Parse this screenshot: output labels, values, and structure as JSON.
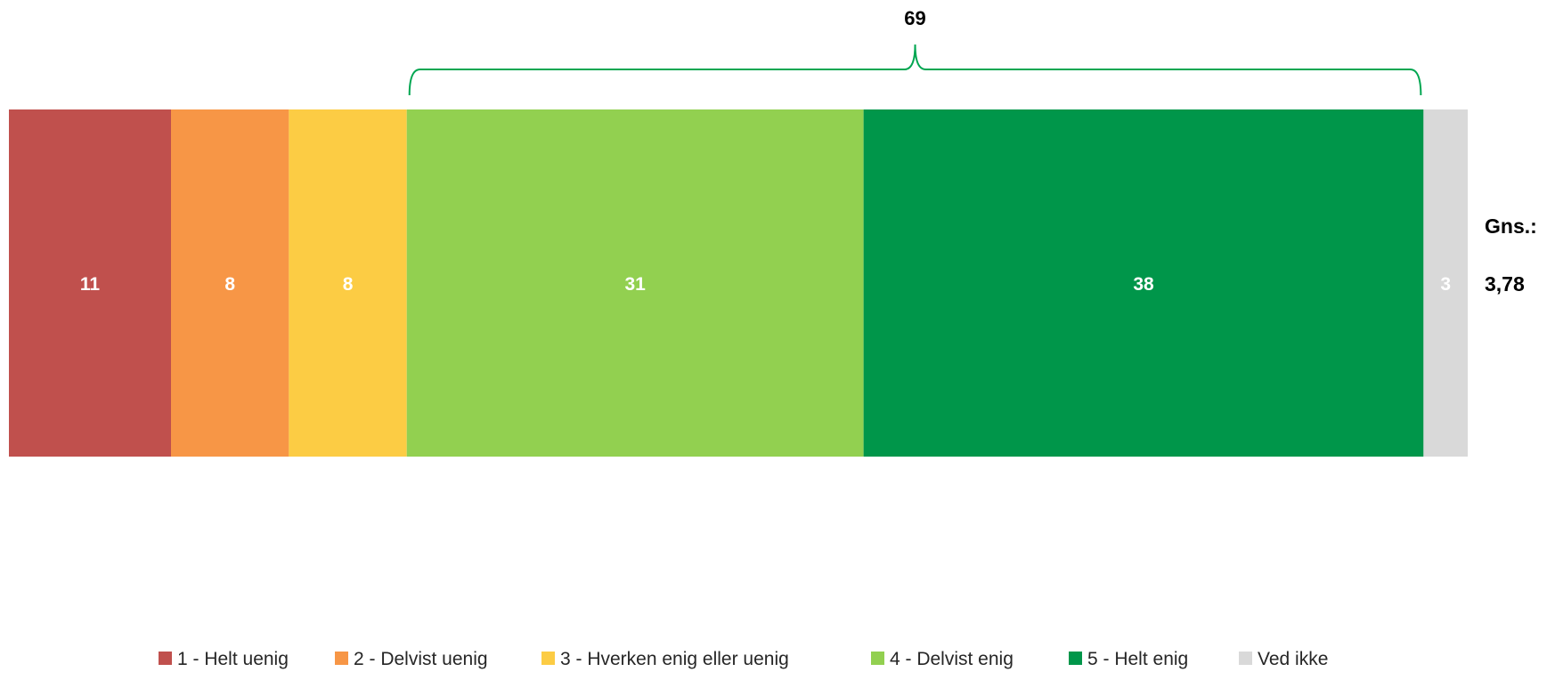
{
  "chart_data": {
    "type": "bar",
    "orientation": "horizontal",
    "stacked": true,
    "categories": [
      ""
    ],
    "series": [
      {
        "name": "1 - Helt uenig",
        "values": [
          11
        ],
        "color": "#C0504D"
      },
      {
        "name": "2 - Delvist uenig",
        "values": [
          8
        ],
        "color": "#F79646"
      },
      {
        "name": "3 - Hverken enig eller uenig",
        "values": [
          8
        ],
        "color": "#FCCC44"
      },
      {
        "name": "4 - Delvist enig",
        "values": [
          31
        ],
        "color": "#92D050"
      },
      {
        "name": "5 - Helt enig",
        "values": [
          38
        ],
        "color": "#00964A"
      },
      {
        "name": "Ved ikke",
        "values": [
          3
        ],
        "color": "#D9D9D9"
      }
    ],
    "data_label_color": "#ffffff",
    "annotation": {
      "text": "69",
      "spans_series": [
        "4 - Delvist enig",
        "5 - Helt enig"
      ],
      "bracket_color": "#00A651"
    },
    "side_label": {
      "title": "Gns.:",
      "value": "3,78"
    },
    "legend": {
      "position": "bottom"
    },
    "xlim": [
      0,
      99
    ],
    "grid": false
  }
}
